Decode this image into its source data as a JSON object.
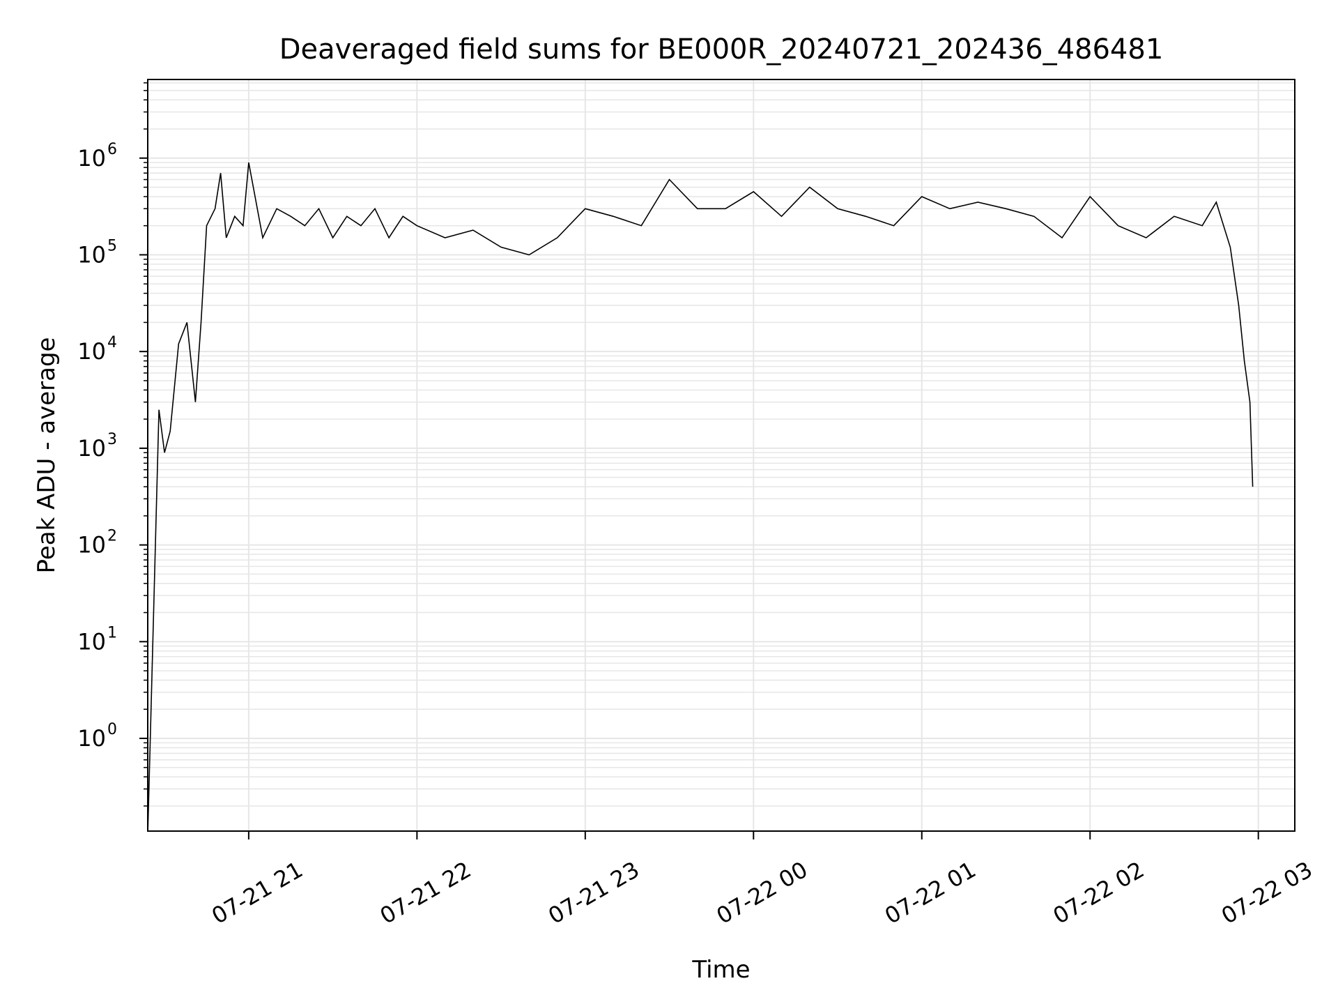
{
  "chart_data": {
    "type": "line",
    "title": "Deaveraged field sums for BE000R_20240721_202436_486481",
    "xlabel": "Time",
    "ylabel": "Peak ADU - average",
    "x_tick_labels": [
      "07-21 21",
      "07-21 22",
      "07-21 23",
      "07-22 00",
      "07-22 01",
      "07-22 02",
      "07-22 03"
    ],
    "y_tick_labels": [
      {
        "base": "10",
        "exp": "0"
      },
      {
        "base": "10",
        "exp": "1"
      },
      {
        "base": "10",
        "exp": "2"
      },
      {
        "base": "10",
        "exp": "3"
      },
      {
        "base": "10",
        "exp": "4"
      },
      {
        "base": "10",
        "exp": "5"
      },
      {
        "base": "10",
        "exp": "6"
      }
    ],
    "x_range": [
      "2024-07-21 20:24",
      "2024-07-22 03:13"
    ],
    "y_scale": "log",
    "ylim": [
      0.11,
      6500000
    ],
    "grid": true,
    "line_color": "#000000",
    "grid_color": "#e6e6e6",
    "series": [
      {
        "x": [
          "2024-07-21 20:24",
          "2024-07-21 20:28",
          "2024-07-21 20:30",
          "2024-07-21 20:32",
          "2024-07-21 20:35",
          "2024-07-21 20:38",
          "2024-07-21 20:41",
          "2024-07-21 20:43",
          "2024-07-21 20:45",
          "2024-07-21 20:48",
          "2024-07-21 20:50",
          "2024-07-21 20:52",
          "2024-07-21 20:55",
          "2024-07-21 20:58",
          "2024-07-21 21:00",
          "2024-07-21 21:05",
          "2024-07-21 21:10",
          "2024-07-21 21:15",
          "2024-07-21 21:20",
          "2024-07-21 21:25",
          "2024-07-21 21:30",
          "2024-07-21 21:35",
          "2024-07-21 21:40",
          "2024-07-21 21:45",
          "2024-07-21 21:50",
          "2024-07-21 21:55",
          "2024-07-21 22:00",
          "2024-07-21 22:10",
          "2024-07-21 22:20",
          "2024-07-21 22:30",
          "2024-07-21 22:40",
          "2024-07-21 22:50",
          "2024-07-21 23:00",
          "2024-07-21 23:10",
          "2024-07-21 23:20",
          "2024-07-21 23:30",
          "2024-07-21 23:40",
          "2024-07-21 23:50",
          "2024-07-22 00:00",
          "2024-07-22 00:10",
          "2024-07-22 00:20",
          "2024-07-22 00:30",
          "2024-07-22 00:40",
          "2024-07-22 00:50",
          "2024-07-22 01:00",
          "2024-07-22 01:10",
          "2024-07-22 01:20",
          "2024-07-22 01:30",
          "2024-07-22 01:40",
          "2024-07-22 01:50",
          "2024-07-22 02:00",
          "2024-07-22 02:10",
          "2024-07-22 02:20",
          "2024-07-22 02:30",
          "2024-07-22 02:40",
          "2024-07-22 02:45",
          "2024-07-22 02:50",
          "2024-07-22 02:53",
          "2024-07-22 02:55",
          "2024-07-22 02:57",
          "2024-07-22 02:58"
        ],
        "y": [
          0.1,
          2500,
          900,
          1500,
          12000,
          20000,
          3000,
          20000,
          200000,
          300000,
          700000,
          150000,
          250000,
          200000,
          900000,
          150000,
          300000,
          250000,
          200000,
          300000,
          150000,
          250000,
          200000,
          300000,
          150000,
          250000,
          200000,
          150000,
          180000,
          120000,
          100000,
          150000,
          300000,
          250000,
          200000,
          600000,
          300000,
          300000,
          450000,
          250000,
          500000,
          300000,
          250000,
          200000,
          400000,
          300000,
          350000,
          300000,
          250000,
          150000,
          400000,
          200000,
          150000,
          250000,
          200000,
          350000,
          120000,
          30000,
          8000,
          3000,
          400
        ]
      }
    ]
  }
}
